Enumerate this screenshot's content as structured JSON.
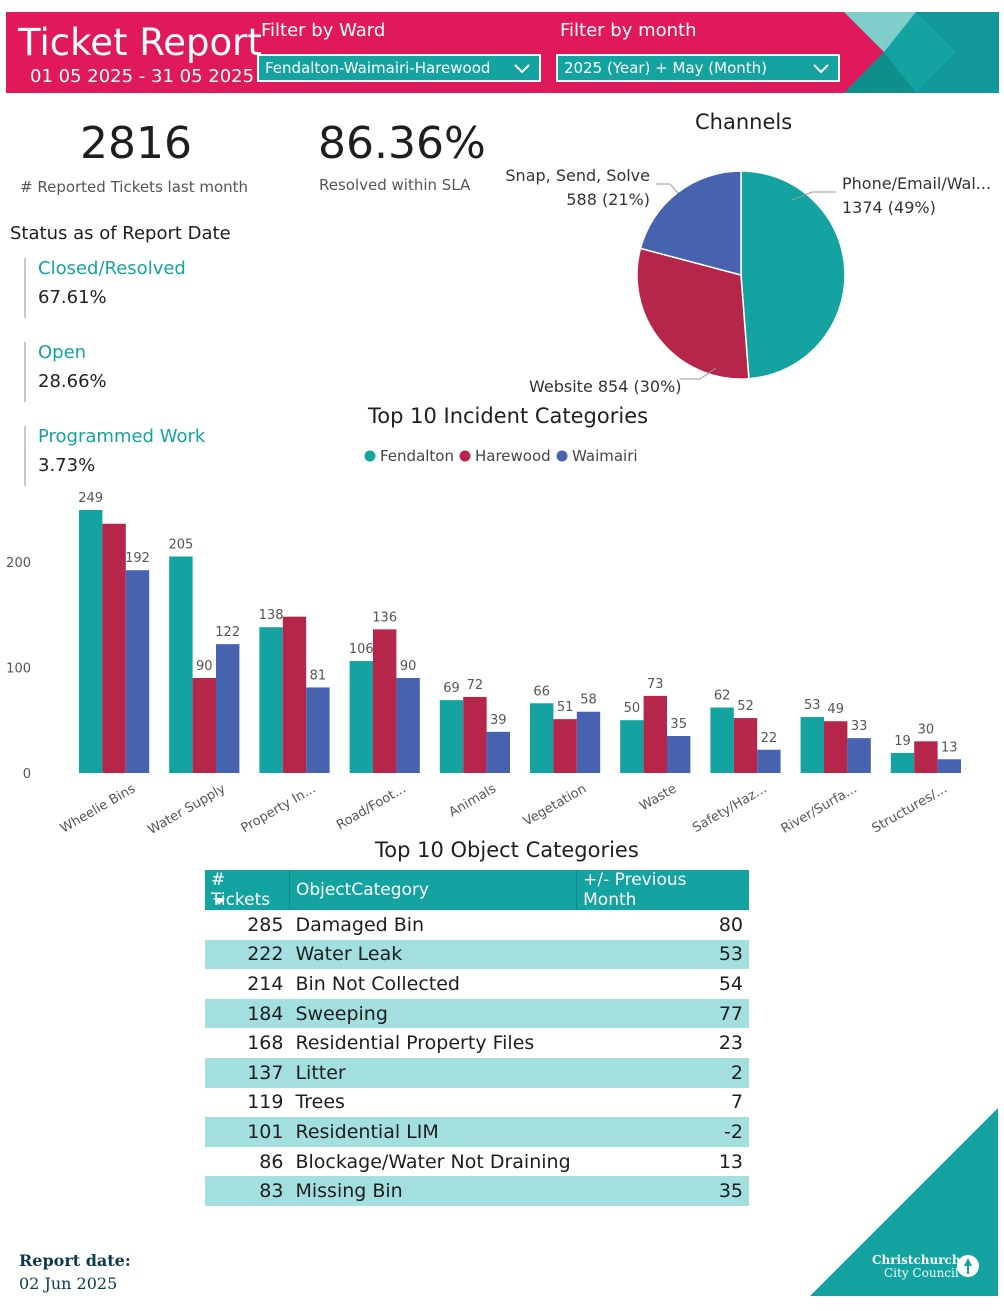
{
  "header": {
    "title": "Ticket Report",
    "date_range": "01 05 2025 - 31 05 2025",
    "ward_filter_label": "Filter by Ward",
    "ward_filter_value": "Fendalton-Waimairi-Harewood",
    "month_filter_label": "Filter by month",
    "month_filter_value": "2025 (Year) + May (Month)"
  },
  "kpis": {
    "tickets_value": "2816",
    "tickets_label": "# Reported Tickets last month",
    "sla_value": "86.36%",
    "sla_label": "Resolved within SLA"
  },
  "status": {
    "title": "Status as of Report Date",
    "items": [
      {
        "label": "Closed/Resolved",
        "value": "67.61%"
      },
      {
        "label": "Open",
        "value": "28.66%"
      },
      {
        "label": "Programmed Work",
        "value": "3.73%"
      }
    ]
  },
  "channels_chart": {
    "title": "Channels",
    "labels": [
      {
        "l1": "Phone/Email/Wal...",
        "l2": "1374 (49%)"
      },
      {
        "l1": "Website 854 (30%)",
        "l2": ""
      },
      {
        "l1": "Snap, Send, Solve",
        "l2": "588 (21%)"
      }
    ]
  },
  "incidents_chart": {
    "title": "Top 10 Incident Categories"
  },
  "object_table": {
    "title": "Top 10 Object Categories",
    "headers": [
      "# Tickets",
      "ObjectCategory",
      "+/- Previous Month"
    ],
    "rows": [
      [
        "285",
        "Damaged Bin",
        "80"
      ],
      [
        "222",
        "Water Leak",
        "53"
      ],
      [
        "214",
        "Bin Not Collected",
        "54"
      ],
      [
        "184",
        "Sweeping",
        "77"
      ],
      [
        "168",
        "Residential Property Files",
        "23"
      ],
      [
        "137",
        "Litter",
        "2"
      ],
      [
        "119",
        "Trees",
        "7"
      ],
      [
        "101",
        "Residential LIM",
        "-2"
      ],
      [
        "86",
        "Blockage/Water Not Draining",
        "13"
      ],
      [
        "83",
        "Missing Bin",
        "35"
      ]
    ]
  },
  "footer": {
    "report_label": "Report date:",
    "report_date": "02 Jun 2025",
    "logo_text_1": "Christchurch",
    "logo_text_2": "City Council"
  },
  "colors": {
    "brand": "#e0195a",
    "teal": "#14a3a0",
    "crimson": "#b5264a",
    "blue": "#4763b0",
    "table_alt": "#a3dfdf"
  },
  "chart_data": [
    {
      "type": "pie",
      "title": "Channels",
      "categories": [
        "Phone/Email/Wal...",
        "Website",
        "Snap, Send, Solve"
      ],
      "values": [
        1374,
        854,
        588
      ],
      "percent_labels": [
        "49%",
        "30%",
        "21%"
      ],
      "colors": [
        "#14a3a0",
        "#b5264a",
        "#4763b0"
      ]
    },
    {
      "type": "bar",
      "title": "Top 10 Incident Categories",
      "categories": [
        "Wheelie Bins",
        "Water Supply",
        "Property In...",
        "Road/Foot...",
        "Animals",
        "Vegetation",
        "Waste",
        "Safety/Haz...",
        "River/Surfa...",
        "Structures/..."
      ],
      "series": [
        {
          "name": "Fendalton",
          "color": "#14a3a0",
          "values": [
            249,
            205,
            138,
            106,
            69,
            66,
            50,
            62,
            53,
            19
          ]
        },
        {
          "name": "Harewood",
          "color": "#b5264a",
          "values": [
            236,
            90,
            148,
            136,
            72,
            51,
            73,
            52,
            49,
            30
          ]
        },
        {
          "name": "Waimairi",
          "color": "#4763b0",
          "values": [
            192,
            122,
            81,
            90,
            39,
            58,
            35,
            22,
            33,
            13
          ]
        }
      ],
      "data_labels": [
        [
          "249",
          "",
          "192"
        ],
        [
          "205",
          "90",
          "122"
        ],
        [
          "138",
          "",
          "81"
        ],
        [
          "106",
          "136",
          "90"
        ],
        [
          "69",
          "72",
          "39"
        ],
        [
          "66",
          "51",
          "58"
        ],
        [
          "50",
          "73",
          "35"
        ],
        [
          "62",
          "52",
          "22"
        ],
        [
          "53",
          "49",
          "33"
        ],
        [
          "19",
          "30",
          "13"
        ]
      ],
      "yticks": [
        0,
        100,
        200
      ],
      "ylim": [
        0,
        249
      ],
      "legend_position": "top-center",
      "grid": false
    }
  ]
}
